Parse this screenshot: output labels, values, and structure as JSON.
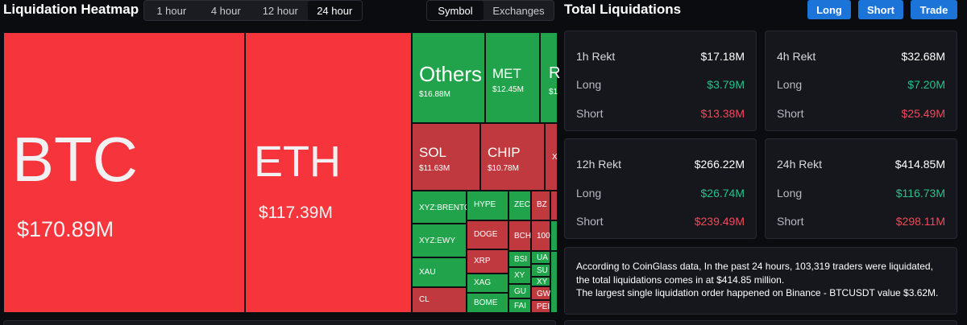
{
  "header": {
    "title": "Liquidation Heatmap",
    "time_tabs": [
      "1 hour",
      "4 hour",
      "12 hour",
      "24 hour"
    ],
    "active_time_tab": "24 hour",
    "view_tabs": [
      "Symbol",
      "Exchanges"
    ],
    "active_view_tab": "Symbol"
  },
  "heatmap": {
    "cells": {
      "btc": {
        "symbol": "BTC",
        "value": "$170.89M"
      },
      "eth": {
        "symbol": "ETH",
        "value": "$117.39M"
      },
      "others": {
        "symbol": "Others",
        "value": "$16.88M"
      },
      "met": {
        "symbol": "MET",
        "value": "$12.45M"
      },
      "r": {
        "symbol": "R",
        "value": "$1"
      },
      "sol": {
        "symbol": "SOL",
        "value": "$11.63M"
      },
      "chip": {
        "symbol": "CHIP",
        "value": "$10.78M"
      },
      "x": {
        "symbol": "X"
      },
      "xyzbrent": {
        "symbol": "XYZ:BRENTO"
      },
      "xyzewy": {
        "symbol": "XYZ:EWY"
      },
      "xau": {
        "symbol": "XAU"
      },
      "cl": {
        "symbol": "CL"
      },
      "hype": {
        "symbol": "HYPE"
      },
      "doge": {
        "symbol": "DOGE"
      },
      "xrp": {
        "symbol": "XRP"
      },
      "xag": {
        "symbol": "XAG"
      },
      "bome": {
        "symbol": "BOME"
      },
      "zec": {
        "symbol": "ZEC"
      },
      "bz": {
        "symbol": "BZ"
      },
      "bch": {
        "symbol": "BCH"
      },
      "c100": {
        "symbol": "100"
      },
      "bs": {
        "symbol": "BSI"
      },
      "ua": {
        "symbol": "UA"
      },
      "xy": {
        "symbol": "XY"
      },
      "su": {
        "symbol": "SU"
      },
      "gu": {
        "symbol": "GU"
      },
      "xy2": {
        "symbol": "XY"
      },
      "fa": {
        "symbol": "FAI"
      },
      "gw": {
        "symbol": "GW"
      },
      "pe": {
        "symbol": "PEI"
      }
    }
  },
  "totals": {
    "title": "Total Liquidations",
    "buttons": {
      "long": "Long",
      "short": "Short",
      "trade": "Trade"
    },
    "cards": [
      {
        "period": "1h Rekt",
        "total": "$17.18M",
        "long_label": "Long",
        "long": "$3.79M",
        "short_label": "Short",
        "short": "$13.38M"
      },
      {
        "period": "4h Rekt",
        "total": "$32.68M",
        "long_label": "Long",
        "long": "$7.20M",
        "short_label": "Short",
        "short": "$25.49M"
      },
      {
        "period": "12h Rekt",
        "total": "$266.22M",
        "long_label": "Long",
        "long": "$26.74M",
        "short_label": "Short",
        "short": "$239.49M"
      },
      {
        "period": "24h Rekt",
        "total": "$414.85M",
        "long_label": "Long",
        "long": "$116.73M",
        "short_label": "Short",
        "short": "$298.11M"
      }
    ],
    "info_line1": "According to CoinGlass data, In the past 24 hours, 103,319 traders were liquidated, the total liquidations comes in at $414.85 million.",
    "info_line2": "The largest single liquidation order happened on Binance - BTCUSDT value $3.62M."
  },
  "colors": {
    "accent": "#1c74d9",
    "long_green": "#27c28c",
    "short_red": "#f2495a",
    "heat_red": "#f5353b",
    "heat_green": "#20a34a"
  }
}
